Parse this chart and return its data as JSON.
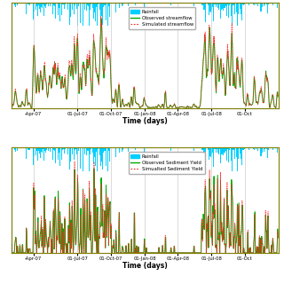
{
  "top_legend": [
    "Rainfall",
    "Observed streamflow",
    "Simulated streamflow"
  ],
  "bottom_legend": [
    "Rainfall",
    "Observed Sediment Yield",
    "Simualted Sediment Yield"
  ],
  "xlabel": "Time (days)",
  "xtick_labels": [
    "-Apr-07",
    "01-Jul-07",
    "01-Oct-07",
    "01-Jan-08",
    "01-Apr-08",
    "01-Jul-08",
    "01-Oct"
  ],
  "xtick_pos": [
    60,
    181,
    273,
    365,
    455,
    547,
    638
  ],
  "n_days": 730,
  "rain_color": "#00cfff",
  "obs_flow_color": "#00aa00",
  "sim_flow_color": "#ff2222",
  "obs_sed_color": "#00aa00",
  "sim_sed_color": "#ff2222",
  "bg_color": "#f0f0f0",
  "grid_color": "#cccccc",
  "rain_ylim_scale": 4.5,
  "flow_ylim_scale": 1.15,
  "rain_max": 120.0
}
